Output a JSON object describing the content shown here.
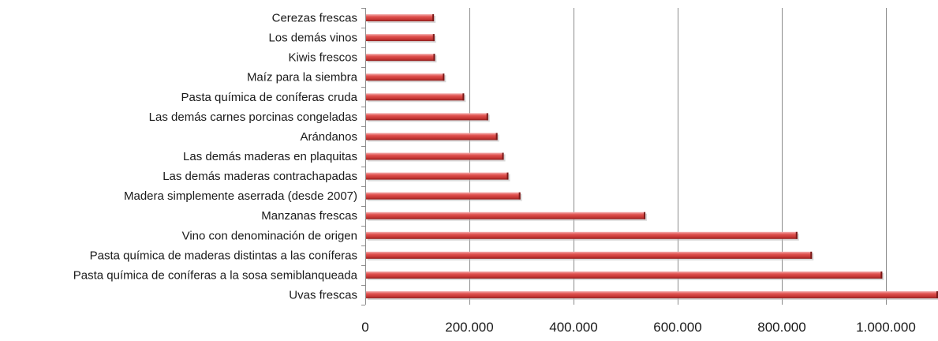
{
  "chart_data": {
    "type": "bar",
    "orientation": "horizontal",
    "categories": [
      "Uvas frescas",
      "Pasta química de coníferas a la sosa semiblanqueada",
      "Pasta química de maderas distintas a las coníferas",
      "Vino con denominación de origen",
      "Manzanas frescas",
      "Madera simplemente aserrada (desde 2007)",
      "Las demás maderas contrachapadas",
      "Las demás maderas en plaquitas",
      "Arándanos",
      "Las demás carnes porcinas congeladas",
      "Pasta química de coníferas cruda",
      "Maíz para la siembra",
      "Kiwis frescos",
      "Los demás vinos",
      "Cerezas frescas"
    ],
    "values": [
      1100000,
      993000,
      858000,
      830000,
      538000,
      298000,
      275000,
      266000,
      254000,
      236000,
      190000,
      152000,
      134000,
      133000,
      132000
    ],
    "xlim": [
      0,
      1100000
    ],
    "xticks": [
      0,
      200000,
      400000,
      600000,
      800000,
      1000000
    ],
    "xtick_labels": [
      "0",
      "200.000",
      "400.000",
      "600.000",
      "800.000",
      "1.000.000"
    ],
    "title": "",
    "xlabel": "",
    "ylabel": "",
    "grid": "vertical",
    "legend": "none",
    "colors": {
      "bar_light": "#f2a3a3",
      "bar_main": "#d9413f",
      "bar_dark": "#8e1e1d",
      "grid": "#8c8c8c"
    }
  }
}
